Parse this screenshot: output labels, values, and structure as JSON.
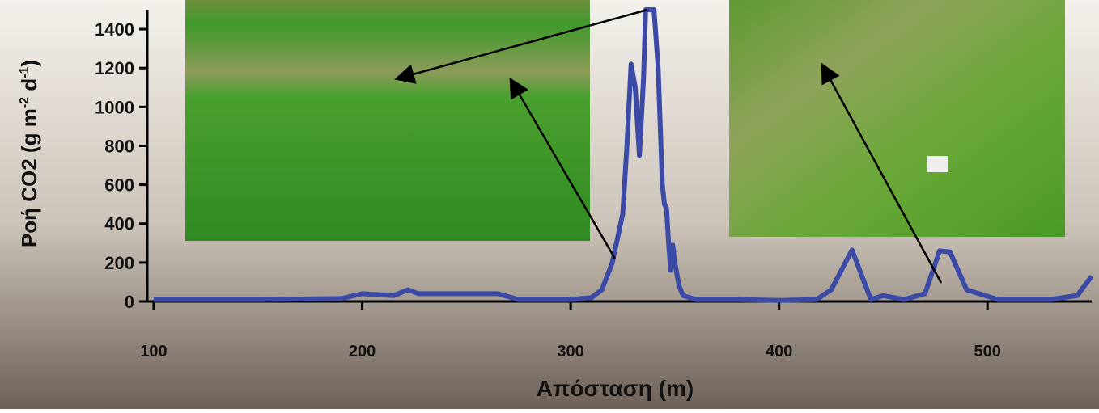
{
  "chart_data": {
    "type": "line",
    "x_label": "Απόσταση (m)",
    "y_label": [
      "Ροή CO2 (g m",
      "-2",
      " d",
      "-1",
      ")"
    ],
    "x": [
      100,
      150,
      190,
      200,
      215,
      222,
      227,
      240,
      265,
      275,
      300,
      310,
      315,
      320,
      325,
      327,
      329,
      331,
      333,
      335,
      336,
      340,
      342,
      344,
      345,
      346,
      347,
      348,
      349,
      350,
      352,
      354,
      360,
      380,
      400,
      418,
      425,
      435,
      444,
      450,
      460,
      470,
      477,
      482,
      490,
      505,
      530,
      543,
      550
    ],
    "values": [
      10,
      10,
      15,
      40,
      30,
      60,
      40,
      40,
      40,
      10,
      10,
      20,
      60,
      200,
      450,
      800,
      1220,
      1100,
      750,
      1150,
      1500,
      1500,
      1200,
      600,
      500,
      480,
      300,
      160,
      290,
      200,
      80,
      30,
      10,
      10,
      5,
      10,
      60,
      265,
      10,
      30,
      10,
      40,
      260,
      255,
      60,
      10,
      10,
      30,
      130
    ],
    "color": "#3a4aa6",
    "xlim": [
      100,
      550
    ],
    "ylim": [
      0,
      1500
    ],
    "xticks": [
      100,
      200,
      300,
      400,
      500
    ],
    "yticks": [
      0,
      200,
      400,
      600,
      800,
      1000,
      1200,
      1400
    ]
  }
}
